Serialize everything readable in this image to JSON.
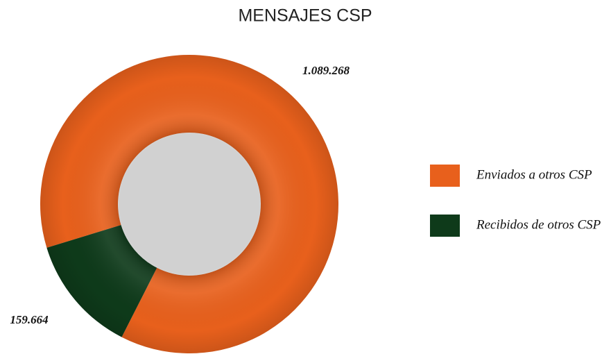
{
  "chart_data": {
    "type": "pie",
    "donut": true,
    "title": "MENSAJES CSP",
    "categories": [
      "Enviados a otros CSP",
      "Recibidos de otros CSP"
    ],
    "values": [
      1089268,
      159664
    ],
    "value_labels": [
      "1.089.268",
      "159.664"
    ],
    "colors": [
      "#e8601c",
      "#0e3a1a"
    ]
  }
}
